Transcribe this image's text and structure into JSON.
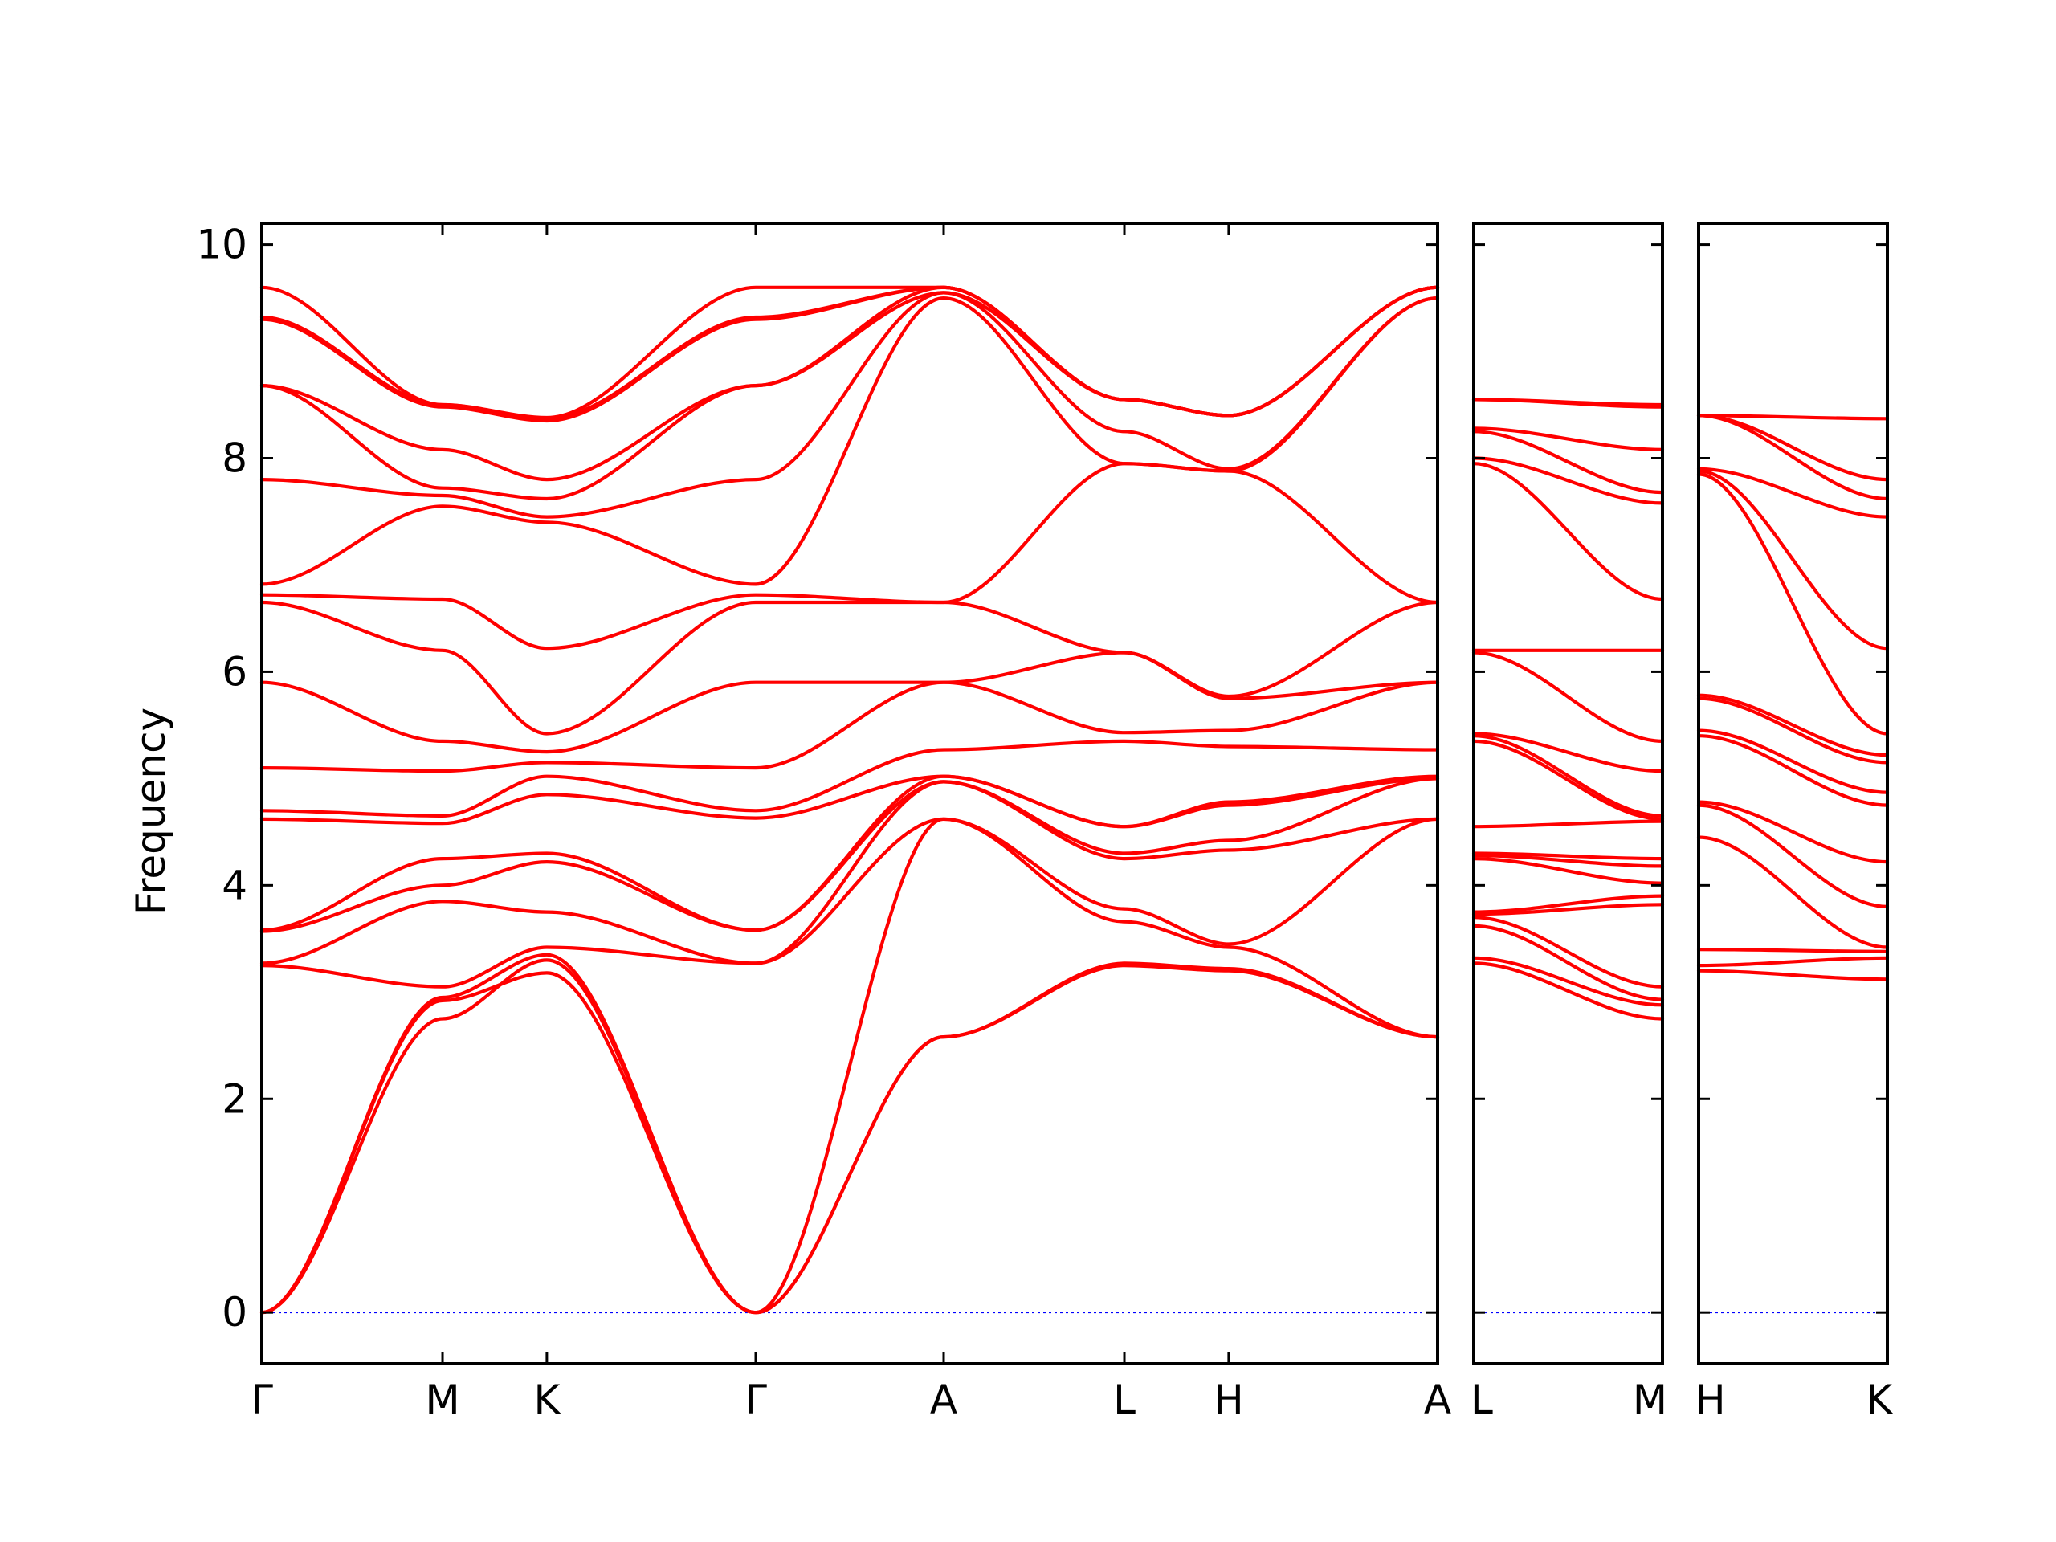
{
  "chart_data": {
    "type": "line",
    "ylabel": "Frequency",
    "ylim": [
      -0.48,
      10.2
    ],
    "yticks": [
      0,
      2,
      4,
      6,
      8,
      10
    ],
    "ytick_labels": [
      "0",
      "2",
      "4",
      "6",
      "8",
      "10"
    ],
    "colors": {
      "bands": "#ff0000",
      "zero_line": "#0000ff",
      "axes": "#000000"
    },
    "grid": false,
    "panels": [
      {
        "id": "path1",
        "points": [
          {
            "label": "Γ",
            "x": 0.0
          },
          {
            "label": "M",
            "x": 0.577
          },
          {
            "label": "K",
            "x": 0.91
          },
          {
            "label": "Γ",
            "x": 1.577
          },
          {
            "label": "A",
            "x": 2.177
          },
          {
            "label": "L",
            "x": 2.754
          },
          {
            "label": "H",
            "x": 3.087
          },
          {
            "label": "A",
            "x": 3.754
          }
        ],
        "bands": [
          [
            0,
            2.75,
            3.3,
            0,
            2.58,
            3.25,
            3.2,
            2.58
          ],
          [
            0,
            2.92,
            3.18,
            0,
            2.58,
            3.27,
            3.22,
            2.58
          ],
          [
            0,
            2.95,
            3.35,
            0,
            4.62,
            3.66,
            3.42,
            2.58
          ],
          [
            3.25,
            3.05,
            3.42,
            3.27,
            4.62,
            3.78,
            3.45,
            4.62
          ],
          [
            3.27,
            3.85,
            3.75,
            3.27,
            4.97,
            4.25,
            4.33,
            4.62
          ],
          [
            3.57,
            4.0,
            4.22,
            3.58,
            4.97,
            4.3,
            4.42,
            5.0
          ],
          [
            3.58,
            4.25,
            4.3,
            3.58,
            5.02,
            4.55,
            4.75,
            5.0
          ],
          [
            4.62,
            4.58,
            4.85,
            4.63,
            5.02,
            4.55,
            4.78,
            5.02
          ],
          [
            4.7,
            4.65,
            5.02,
            4.7,
            5.27,
            5.35,
            5.3,
            5.27
          ],
          [
            5.1,
            5.07,
            5.15,
            5.1,
            5.9,
            5.43,
            5.45,
            5.9
          ],
          [
            5.9,
            5.35,
            5.25,
            5.9,
            5.9,
            6.18,
            5.75,
            5.9
          ],
          [
            6.65,
            6.2,
            5.42,
            6.65,
            6.65,
            6.18,
            5.77,
            6.65
          ],
          [
            6.72,
            6.68,
            6.22,
            6.72,
            6.65,
            7.95,
            7.88,
            6.65
          ],
          [
            6.82,
            7.55,
            7.4,
            6.82,
            9.5,
            7.95,
            7.88,
            9.5
          ],
          [
            7.8,
            7.65,
            7.45,
            7.8,
            9.55,
            8.25,
            7.9,
            9.5
          ],
          [
            8.68,
            7.72,
            7.62,
            8.68,
            9.55,
            8.55,
            8.4,
            9.6
          ],
          [
            8.68,
            8.08,
            7.8,
            8.68,
            9.6,
            8.55,
            8.4,
            9.6
          ],
          [
            9.3,
            8.48,
            8.35,
            9.3,
            9.6,
            8.55,
            8.4,
            9.6
          ],
          [
            9.32,
            8.5,
            8.37,
            9.32,
            9.6,
            8.55,
            8.4,
            9.6
          ],
          [
            9.6,
            8.5,
            8.38,
            9.6,
            9.6,
            8.55,
            8.4,
            9.6
          ]
        ]
      },
      {
        "id": "path2",
        "points": [
          {
            "label": "L",
            "x": 0.0
          },
          {
            "label": "M",
            "x": 0.6
          }
        ],
        "bands": [
          [
            3.27,
            2.75
          ],
          [
            3.32,
            2.88
          ],
          [
            3.62,
            2.93
          ],
          [
            3.7,
            3.05
          ],
          [
            3.73,
            3.82
          ],
          [
            3.75,
            3.9
          ],
          [
            4.25,
            4.02
          ],
          [
            4.28,
            4.18
          ],
          [
            4.3,
            4.25
          ],
          [
            4.55,
            4.6
          ],
          [
            5.35,
            4.62
          ],
          [
            5.4,
            4.65
          ],
          [
            5.42,
            5.07
          ],
          [
            6.18,
            5.35
          ],
          [
            6.2,
            6.2
          ],
          [
            7.95,
            6.68
          ],
          [
            8.0,
            7.58
          ],
          [
            8.25,
            7.68
          ],
          [
            8.28,
            8.08
          ],
          [
            8.55,
            8.48
          ],
          [
            8.55,
            8.5
          ]
        ]
      },
      {
        "id": "path3",
        "points": [
          {
            "label": "H",
            "x": 0.0
          },
          {
            "label": "K",
            "x": 0.6
          }
        ],
        "bands": [
          [
            3.2,
            3.12
          ],
          [
            3.25,
            3.32
          ],
          [
            3.4,
            3.38
          ],
          [
            4.45,
            3.42
          ],
          [
            4.75,
            3.8
          ],
          [
            4.78,
            4.22
          ],
          [
            5.4,
            4.75
          ],
          [
            5.45,
            4.87
          ],
          [
            5.75,
            5.15
          ],
          [
            5.78,
            5.22
          ],
          [
            7.85,
            5.42
          ],
          [
            7.88,
            6.22
          ],
          [
            7.9,
            7.45
          ],
          [
            8.4,
            7.62
          ],
          [
            8.4,
            7.8
          ],
          [
            8.4,
            8.37
          ]
        ]
      }
    ]
  }
}
